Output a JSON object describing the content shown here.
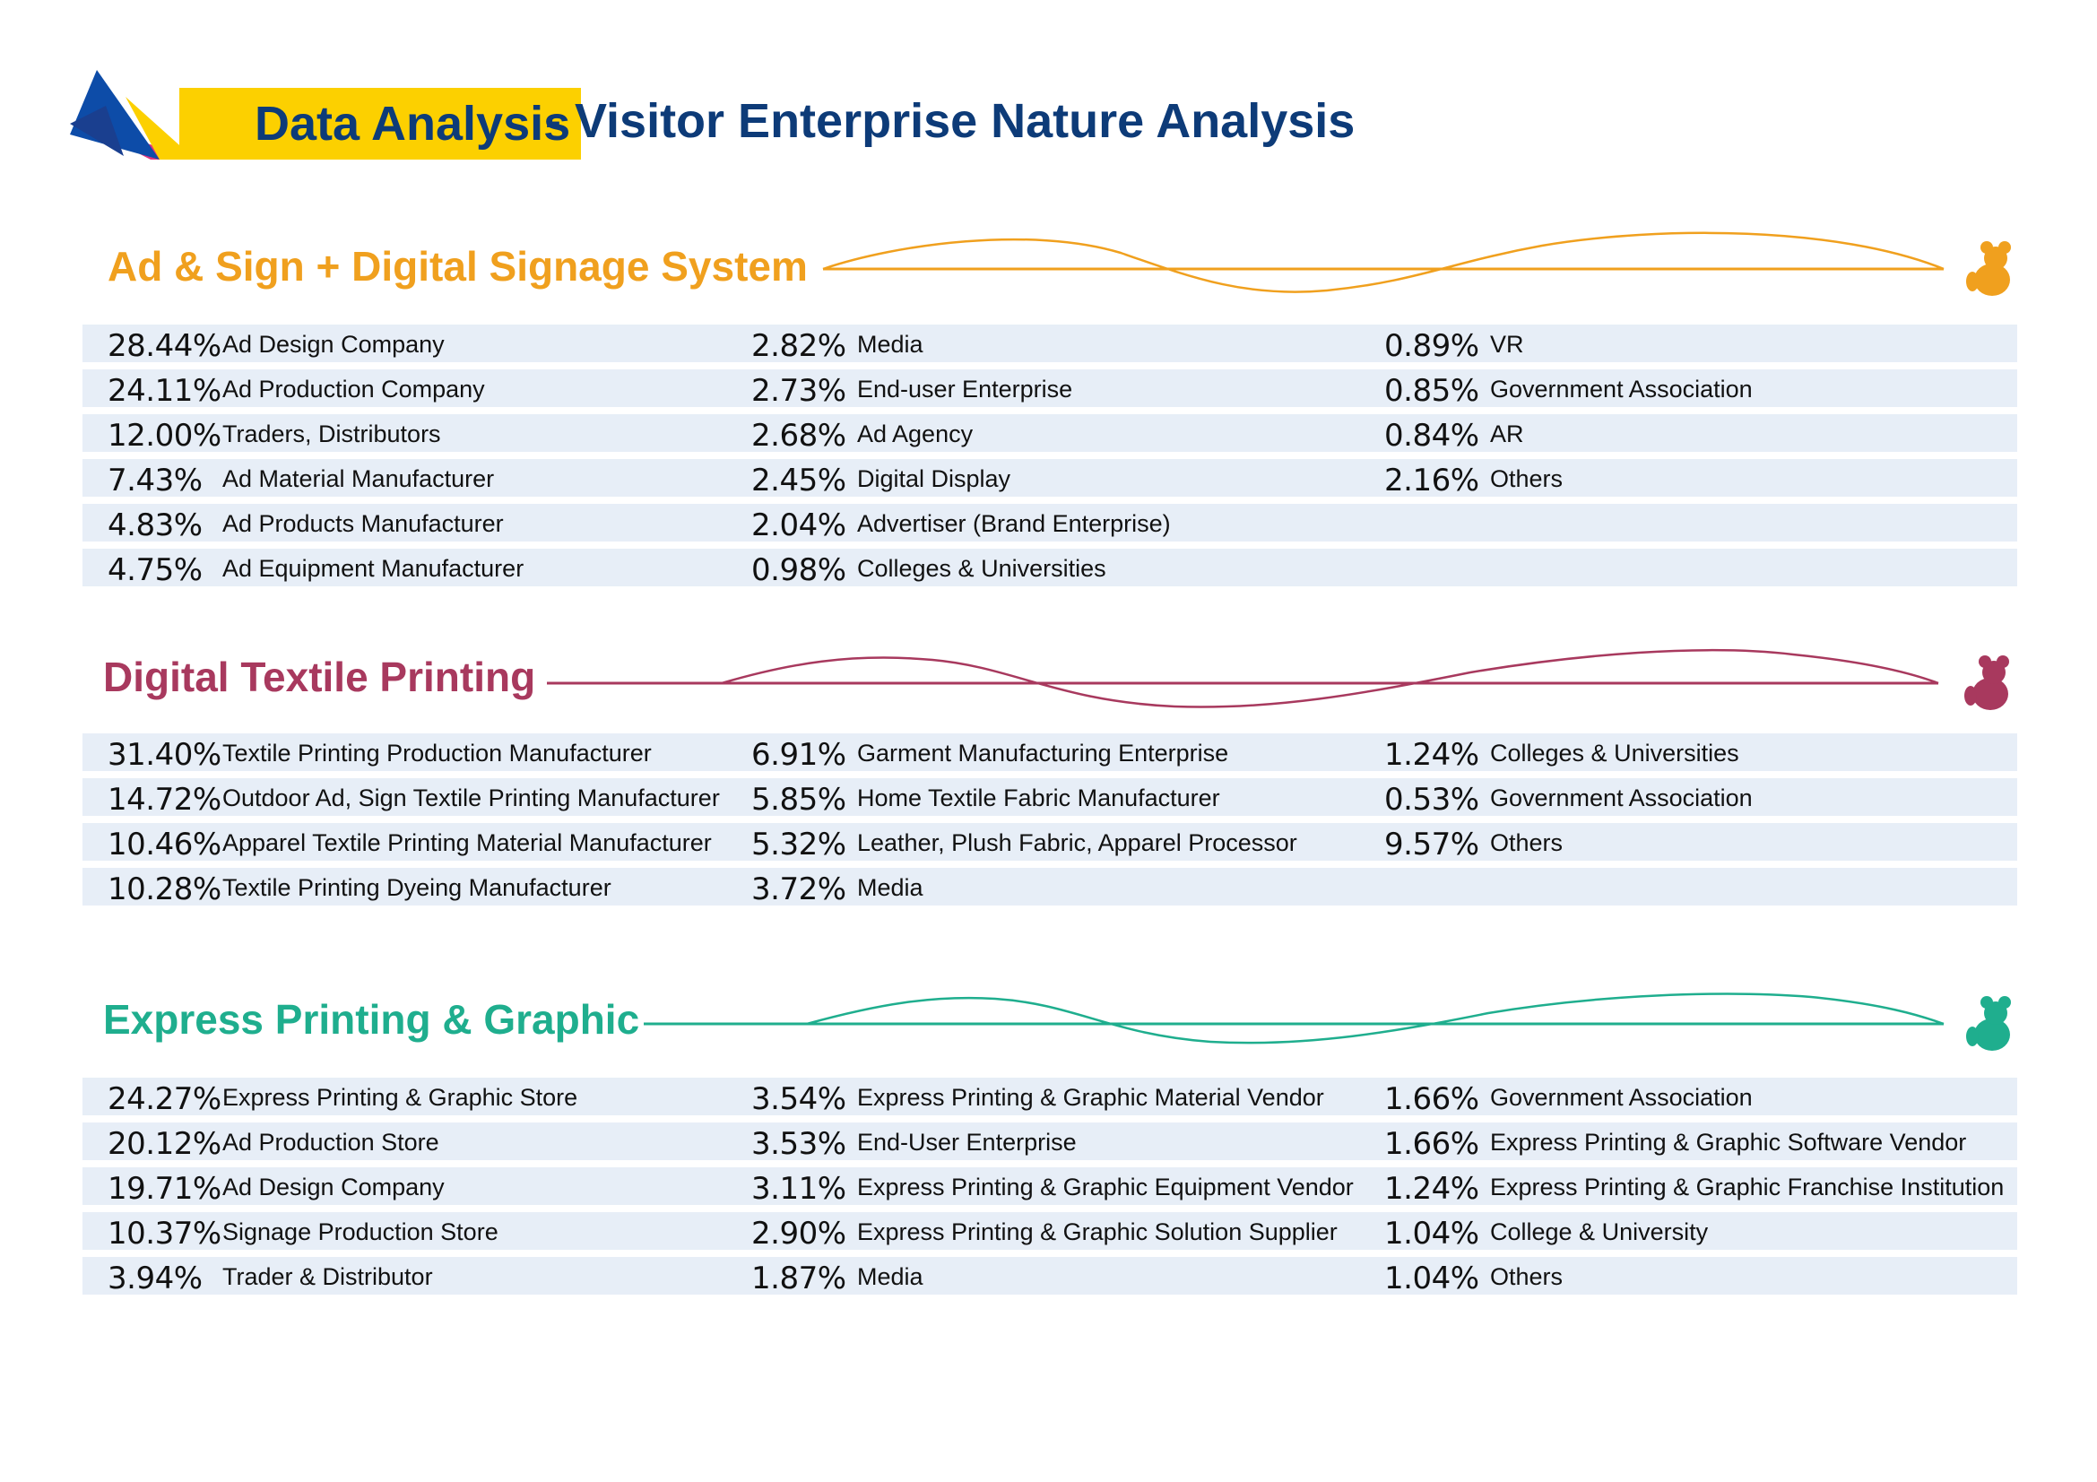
{
  "header": {
    "badge_title": "Data Analysis",
    "title": "- Visitor Enterprise Nature Analysis"
  },
  "colors": {
    "navy": "#0d3b78",
    "yellow": "#fcd000",
    "section_1": "#f0a01e",
    "section_2": "#a8395e",
    "section_3": "#1fae8e",
    "row_bg": "#e7eef7"
  },
  "sections": [
    {
      "title": "Ad & Sign + Digital Signage System",
      "icon": "mascot-icon",
      "rows": [
        [
          {
            "pct": "28.44%",
            "label": "Ad Design Company"
          },
          {
            "pct": "2.82%",
            "label": "Media"
          },
          {
            "pct": "0.89%",
            "label": "VR"
          }
        ],
        [
          {
            "pct": "24.11%",
            "label": "Ad Production Company"
          },
          {
            "pct": "2.73%",
            "label": "End-user Enterprise"
          },
          {
            "pct": "0.85%",
            "label": "Government Association"
          }
        ],
        [
          {
            "pct": "12.00%",
            "label": "Traders, Distributors"
          },
          {
            "pct": "2.68%",
            "label": "Ad Agency"
          },
          {
            "pct": "0.84%",
            "label": "AR"
          }
        ],
        [
          {
            "pct": "7.43%",
            "label": "Ad Material Manufacturer"
          },
          {
            "pct": "2.45%",
            "label": "Digital Display"
          },
          {
            "pct": "2.16%",
            "label": "Others"
          }
        ],
        [
          {
            "pct": "4.83%",
            "label": "Ad Products Manufacturer"
          },
          {
            "pct": "2.04%",
            "label": "Advertiser (Brand Enterprise)"
          },
          {
            "pct": "",
            "label": ""
          }
        ],
        [
          {
            "pct": "4.75%",
            "label": "Ad Equipment Manufacturer"
          },
          {
            "pct": "0.98%",
            "label": "Colleges & Universities"
          },
          {
            "pct": "",
            "label": ""
          }
        ]
      ]
    },
    {
      "title": "Digital Textile Printing",
      "icon": "mascot-icon",
      "rows": [
        [
          {
            "pct": "31.40%",
            "label": "Textile Printing Production Manufacturer"
          },
          {
            "pct": "6.91%",
            "label": "Garment Manufacturing Enterprise"
          },
          {
            "pct": "1.24%",
            "label": "Colleges & Universities"
          }
        ],
        [
          {
            "pct": "14.72%",
            "label": "Outdoor Ad, Sign Textile Printing Manufacturer"
          },
          {
            "pct": "5.85%",
            "label": "Home Textile Fabric Manufacturer"
          },
          {
            "pct": "0.53%",
            "label": "Government Association"
          }
        ],
        [
          {
            "pct": "10.46%",
            "label": "Apparel Textile Printing Material Manufacturer"
          },
          {
            "pct": "5.32%",
            "label": "Leather, Plush Fabric, Apparel Processor"
          },
          {
            "pct": "9.57%",
            "label": "Others"
          }
        ],
        [
          {
            "pct": "10.28%",
            "label": "Textile Printing Dyeing Manufacturer"
          },
          {
            "pct": "3.72%",
            "label": "Media"
          },
          {
            "pct": "",
            "label": ""
          }
        ]
      ]
    },
    {
      "title": "Express Printing & Graphic",
      "icon": "mascot-icon",
      "rows": [
        [
          {
            "pct": "24.27%",
            "label": "Express Printing & Graphic Store"
          },
          {
            "pct": "3.54%",
            "label": "Express Printing & Graphic Material Vendor"
          },
          {
            "pct": "1.66%",
            "label": "Government Association"
          }
        ],
        [
          {
            "pct": "20.12%",
            "label": "Ad Production Store"
          },
          {
            "pct": "3.53%",
            "label": "End-User Enterprise"
          },
          {
            "pct": "1.66%",
            "label": "Express Printing & Graphic Software Vendor"
          }
        ],
        [
          {
            "pct": "19.71%",
            "label": "Ad Design Company"
          },
          {
            "pct": "3.11%",
            "label": "Express Printing & Graphic Equipment Vendor"
          },
          {
            "pct": "1.24%",
            "label": "Express Printing & Graphic Franchise Institution"
          }
        ],
        [
          {
            "pct": "10.37%",
            "label": "Signage Production Store"
          },
          {
            "pct": "2.90%",
            "label": "Express Printing & Graphic Solution Supplier"
          },
          {
            "pct": "1.04%",
            "label": "College & University"
          }
        ],
        [
          {
            "pct": "3.94%",
            "label": "Trader & Distributor"
          },
          {
            "pct": "1.87%",
            "label": "Media"
          },
          {
            "pct": "1.04%",
            "label": "Others"
          }
        ]
      ]
    }
  ]
}
